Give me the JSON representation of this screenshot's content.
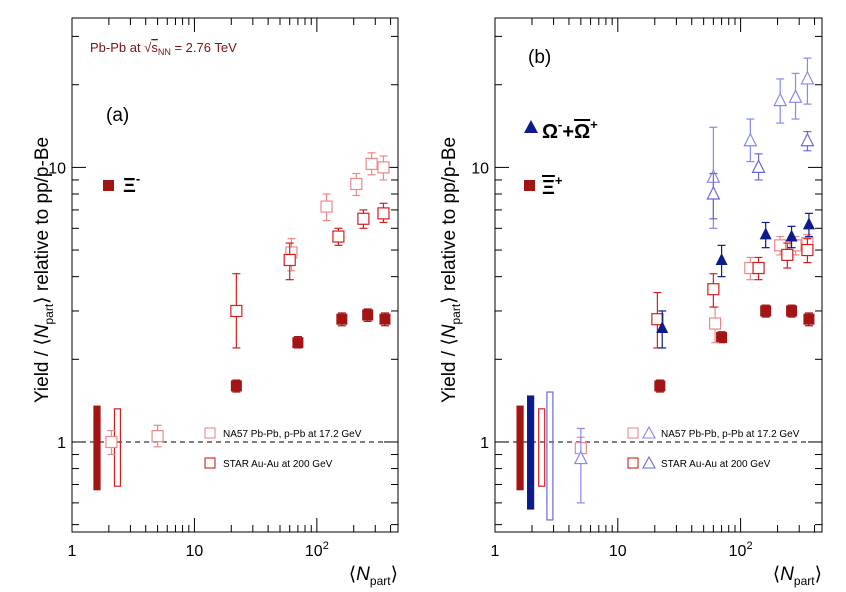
{
  "energy_label": {
    "prefix": "Pb-Pb at ",
    "sqrt": "√",
    "s": "s",
    "sub": "NN",
    "suffix": " = 2.76 TeV"
  },
  "colors": {
    "alice_xi": "#a31515",
    "na57_xi": "#ee8888",
    "star_xi": "#d41f1f",
    "alice_omega": "#0d1a8c",
    "na57_omega": "#8888ee",
    "star_omega": "#6a6ad8"
  },
  "chart_data": [
    {
      "type": "scatter",
      "panel_label": "(a)",
      "particle_label": {
        "main": "Ξ",
        "sup": "-"
      },
      "ytitle": {
        "pre": "Yield / ⟨",
        "N": "N",
        "sub": "part",
        "post": "⟩ relative to pp/p-Be"
      },
      "xtitle": {
        "pre": "⟨",
        "N": "N",
        "sub": "part",
        "post": "⟩"
      },
      "xscale": "log",
      "yscale": "log",
      "xlim": [
        1,
        460
      ],
      "ylim": [
        0.47,
        35
      ],
      "xticks": [
        {
          "v": 1,
          "t": "1"
        },
        {
          "v": 10,
          "t": "10"
        },
        {
          "v": 100,
          "t": "10",
          "exp": "2"
        }
      ],
      "yticks": [
        {
          "v": 1,
          "t": "1"
        },
        {
          "v": 10,
          "t": "10"
        }
      ],
      "reference_line": 1,
      "legend": [
        {
          "label": "NA57 Pb-Pb, p-Pb at 17.2 GeV",
          "marker": "open-square",
          "color": "#ee8888"
        },
        {
          "label": "STAR Au-Au at 200 GeV",
          "marker": "open-square",
          "color": "#d41f1f"
        }
      ],
      "series": [
        {
          "name": "ALICE Ξ-",
          "marker": "filled-square",
          "color": "#a31515",
          "points": [
            {
              "x": 22,
              "y": 1.6,
              "lo": 1.52,
              "hi": 1.68
            },
            {
              "x": 70,
              "y": 2.3,
              "lo": 2.2,
              "hi": 2.42
            },
            {
              "x": 160,
              "y": 2.8,
              "lo": 2.65,
              "hi": 2.95
            },
            {
              "x": 260,
              "y": 2.9,
              "lo": 2.75,
              "hi": 3.05
            },
            {
              "x": 360,
              "y": 2.8,
              "lo": 2.65,
              "hi": 2.95
            }
          ]
        },
        {
          "name": "NA57 Ξ-",
          "marker": "open-square",
          "color": "#ee8888",
          "points": [
            {
              "x": 2.1,
              "y": 1.0,
              "lo": 0.9,
              "hi": 1.1
            },
            {
              "x": 5,
              "y": 1.05,
              "lo": 0.96,
              "hi": 1.15
            },
            {
              "x": 62,
              "y": 4.9,
              "lo": 4.2,
              "hi": 5.5
            },
            {
              "x": 120,
              "y": 7.2,
              "lo": 6.4,
              "hi": 8.0
            },
            {
              "x": 210,
              "y": 8.7,
              "lo": 7.9,
              "hi": 9.5
            },
            {
              "x": 280,
              "y": 10.3,
              "lo": 9.4,
              "hi": 11.3
            },
            {
              "x": 350,
              "y": 10.0,
              "lo": 9.0,
              "hi": 11.0
            }
          ]
        },
        {
          "name": "STAR Ξ-",
          "marker": "open-square",
          "color": "#d41f1f",
          "points": [
            {
              "x": 22,
              "y": 3.0,
              "lo": 2.2,
              "hi": 4.1
            },
            {
              "x": 60,
              "y": 4.6,
              "lo": 3.9,
              "hi": 5.3
            },
            {
              "x": 150,
              "y": 5.6,
              "lo": 5.2,
              "hi": 6.0
            },
            {
              "x": 240,
              "y": 6.5,
              "lo": 6.0,
              "hi": 7.0
            },
            {
              "x": 350,
              "y": 6.8,
              "lo": 6.3,
              "hi": 7.4
            }
          ]
        }
      ],
      "norm_bars": [
        {
          "x": 1.6,
          "lo": 0.67,
          "hi": 1.35,
          "color": "#a31515",
          "filled": true
        },
        {
          "x": 2.35,
          "lo": 0.69,
          "hi": 1.32,
          "color": "#d41f1f",
          "filled": false
        }
      ]
    },
    {
      "type": "scatter",
      "panel_label": "(b)",
      "particle_label_omega": {
        "main": "Ω",
        "sup1": "-",
        "plus": "+",
        "bar": "Ω",
        "sup2": "+"
      },
      "particle_label_xi": {
        "main": "Ξ",
        "sup": "+"
      },
      "ytitle": {
        "pre": "Yield / ⟨",
        "N": "N",
        "sub": "part",
        "post": "⟩ relative to pp/p-Be"
      },
      "xtitle": {
        "pre": "⟨",
        "N": "N",
        "sub": "part",
        "post": "⟩"
      },
      "xscale": "log",
      "yscale": "log",
      "xlim": [
        1,
        460
      ],
      "ylim": [
        0.47,
        35
      ],
      "xticks": [
        {
          "v": 1,
          "t": "1"
        },
        {
          "v": 10,
          "t": "10"
        },
        {
          "v": 100,
          "t": "10",
          "exp": "2"
        }
      ],
      "yticks": [
        {
          "v": 1,
          "t": "1"
        },
        {
          "v": 10,
          "t": "10"
        }
      ],
      "reference_line": 1,
      "legend": [
        {
          "label": "NA57 Pb-Pb, p-Pb at 17.2 GeV",
          "marker": "open-square+open-triangle",
          "color": "#ee8888",
          "color2": "#8888ee"
        },
        {
          "label": "STAR Au-Au at 200 GeV",
          "marker": "open-square+open-triangle",
          "color": "#d41f1f",
          "color2": "#6a6ad8"
        }
      ],
      "series": [
        {
          "name": "ALICE Ξ+",
          "marker": "filled-square",
          "color": "#a31515",
          "points": [
            {
              "x": 22,
              "y": 1.6,
              "lo": 1.52,
              "hi": 1.68
            },
            {
              "x": 70,
              "y": 2.4,
              "lo": 2.3,
              "hi": 2.52
            },
            {
              "x": 160,
              "y": 3.0,
              "lo": 2.85,
              "hi": 3.15
            },
            {
              "x": 260,
              "y": 3.0,
              "lo": 2.85,
              "hi": 3.15
            },
            {
              "x": 360,
              "y": 2.8,
              "lo": 2.65,
              "hi": 2.95
            }
          ]
        },
        {
          "name": "NA57 Ξ+",
          "marker": "open-square",
          "color": "#ee8888",
          "points": [
            {
              "x": 5,
              "y": 0.95,
              "lo": 0.86,
              "hi": 1.04
            },
            {
              "x": 62,
              "y": 2.7,
              "lo": 2.3,
              "hi": 3.1
            },
            {
              "x": 120,
              "y": 4.3,
              "lo": 3.9,
              "hi": 4.7
            },
            {
              "x": 210,
              "y": 5.2,
              "lo": 4.8,
              "hi": 5.6
            },
            {
              "x": 280,
              "y": 5.2,
              "lo": 4.8,
              "hi": 5.6
            },
            {
              "x": 350,
              "y": 5.3,
              "lo": 4.9,
              "hi": 5.7
            }
          ]
        },
        {
          "name": "STAR Ξ+",
          "marker": "open-square",
          "color": "#d41f1f",
          "points": [
            {
              "x": 21,
              "y": 2.8,
              "lo": 2.2,
              "hi": 3.5
            },
            {
              "x": 60,
              "y": 3.6,
              "lo": 3.1,
              "hi": 4.1
            },
            {
              "x": 140,
              "y": 4.3,
              "lo": 3.9,
              "hi": 4.7
            },
            {
              "x": 240,
              "y": 4.8,
              "lo": 4.3,
              "hi": 5.3
            },
            {
              "x": 350,
              "y": 5.0,
              "lo": 4.5,
              "hi": 5.5
            }
          ]
        },
        {
          "name": "ALICE Ω",
          "marker": "filled-triangle",
          "color": "#0d1a8c",
          "points": [
            {
              "x": 23,
              "y": 2.6,
              "lo": 2.2,
              "hi": 3.0
            },
            {
              "x": 70,
              "y": 4.6,
              "lo": 4.0,
              "hi": 5.2
            },
            {
              "x": 160,
              "y": 5.7,
              "lo": 5.1,
              "hi": 6.3
            },
            {
              "x": 260,
              "y": 5.6,
              "lo": 5.1,
              "hi": 6.1
            },
            {
              "x": 360,
              "y": 6.2,
              "lo": 5.6,
              "hi": 6.8
            }
          ]
        },
        {
          "name": "NA57 Ω",
          "marker": "open-triangle",
          "color": "#8888ee",
          "points": [
            {
              "x": 5,
              "y": 0.87,
              "lo": 0.6,
              "hi": 1.12
            },
            {
              "x": 60,
              "y": 9.2,
              "lo": 6.0,
              "hi": 14.0
            },
            {
              "x": 120,
              "y": 12.5,
              "lo": 10.5,
              "hi": 15.0
            },
            {
              "x": 210,
              "y": 17.5,
              "lo": 14.5,
              "hi": 21.0
            },
            {
              "x": 280,
              "y": 18.0,
              "lo": 15.0,
              "hi": 22.0
            },
            {
              "x": 350,
              "y": 21.0,
              "lo": 17.0,
              "hi": 25.0
            }
          ]
        },
        {
          "name": "STAR Ω",
          "marker": "open-triangle",
          "color": "#6a6ad8",
          "points": [
            {
              "x": 60,
              "y": 8.0,
              "lo": 6.5,
              "hi": 9.5
            },
            {
              "x": 140,
              "y": 10.0,
              "lo": 9.0,
              "hi": 11.2
            },
            {
              "x": 350,
              "y": 12.5,
              "lo": 11.5,
              "hi": 13.5
            }
          ]
        }
      ],
      "norm_bars": [
        {
          "x": 1.6,
          "lo": 0.67,
          "hi": 1.35,
          "color": "#a31515",
          "filled": true
        },
        {
          "x": 1.95,
          "lo": 0.57,
          "hi": 1.47,
          "color": "#0d1a8c",
          "filled": true
        },
        {
          "x": 2.4,
          "lo": 0.69,
          "hi": 1.32,
          "color": "#d41f1f",
          "filled": false
        },
        {
          "x": 2.8,
          "lo": 0.52,
          "hi": 1.52,
          "color": "#6a6ad8",
          "filled": false
        }
      ]
    }
  ]
}
